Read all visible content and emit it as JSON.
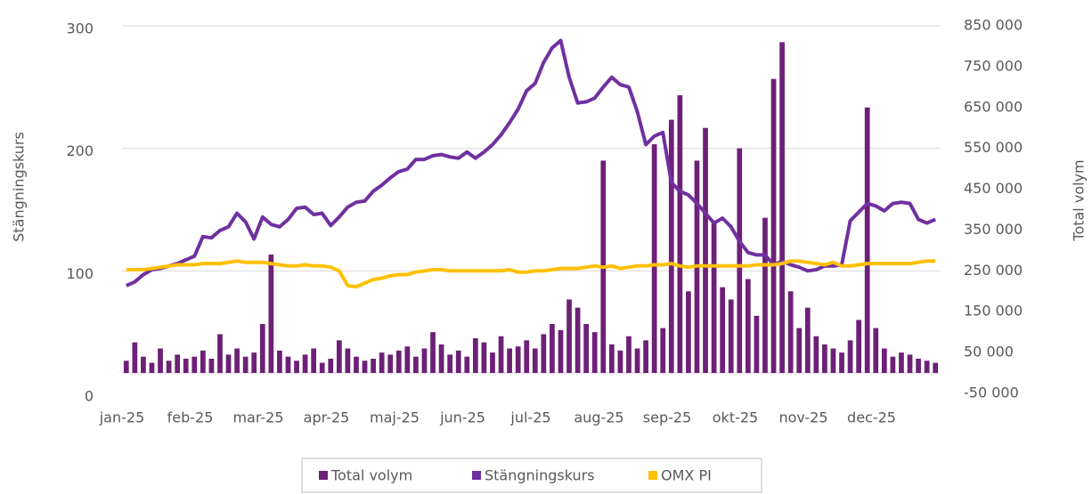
{
  "chart_data": {
    "type": "combo",
    "y_label": "Stängningskurs",
    "y2_label": "Total volym",
    "categories": [
      "jan-25",
      null,
      null,
      null,
      null,
      null,
      null,
      null,
      "feb-25",
      null,
      null,
      null,
      null,
      null,
      null,
      null,
      "mar-25",
      null,
      null,
      null,
      null,
      null,
      null,
      null,
      "apr-25",
      null,
      null,
      null,
      null,
      null,
      null,
      null,
      "maj-25",
      null,
      null,
      null,
      null,
      null,
      null,
      null,
      "jun-25",
      null,
      null,
      null,
      null,
      null,
      null,
      null,
      "jul-25",
      null,
      null,
      null,
      null,
      null,
      null,
      null,
      "aug-25",
      null,
      null,
      null,
      null,
      null,
      null,
      null,
      "sep-25",
      null,
      null,
      null,
      null,
      null,
      null,
      null,
      "okt-25",
      null,
      null,
      null,
      null,
      null,
      null,
      null,
      "nov-25",
      null,
      null,
      null,
      null,
      null,
      null,
      null,
      "dec-25",
      null,
      null,
      null,
      null,
      null,
      null,
      null
    ],
    "series": [
      {
        "name": "Total volym",
        "type": "bar",
        "axis": "y2",
        "color": "#6d2077",
        "values": [
          30000,
          75000,
          40000,
          25000,
          60000,
          30000,
          45000,
          35000,
          40000,
          55000,
          35000,
          95000,
          45000,
          60000,
          40000,
          50000,
          120000,
          290000,
          55000,
          40000,
          30000,
          45000,
          60000,
          25000,
          35000,
          80000,
          60000,
          40000,
          30000,
          35000,
          50000,
          45000,
          55000,
          65000,
          40000,
          60000,
          100000,
          70000,
          45000,
          55000,
          40000,
          85000,
          75000,
          50000,
          90000,
          60000,
          65000,
          80000,
          60000,
          95000,
          120000,
          105000,
          180000,
          160000,
          120000,
          100000,
          520000,
          70000,
          55000,
          90000,
          60000,
          80000,
          560000,
          110000,
          620000,
          680000,
          200000,
          520000,
          600000,
          370000,
          210000,
          180000,
          550000,
          230000,
          140000,
          380000,
          720000,
          810000,
          200000,
          110000,
          160000,
          90000,
          70000,
          60000,
          50000,
          80000,
          130000,
          650000,
          110000,
          60000,
          40000,
          50000,
          45000,
          35000,
          30000,
          25000
        ]
      },
      {
        "name": "Stängningskurs",
        "type": "line",
        "color": "#7030a0",
        "values": [
          88,
          91,
          97,
          101,
          102,
          104,
          106,
          109,
          112,
          128,
          127,
          133,
          136,
          147,
          140,
          126,
          144,
          138,
          136,
          142,
          151,
          152,
          146,
          147,
          137,
          144,
          152,
          156,
          157,
          165,
          170,
          176,
          181,
          183,
          191,
          191,
          194,
          195,
          193,
          192,
          197,
          192,
          197,
          203,
          211,
          221,
          232,
          247,
          253,
          270,
          282,
          288,
          258,
          237,
          238,
          241,
          250,
          258,
          252,
          250,
          230,
          203,
          210,
          213,
          172,
          165,
          162,
          155,
          147,
          139,
          143,
          136,
          124,
          115,
          113,
          113,
          105,
          108,
          105,
          103,
          100,
          101,
          104,
          104,
          105,
          141,
          148,
          155,
          153,
          149,
          155,
          156,
          155,
          142,
          139,
          142
        ]
      },
      {
        "name": "OMX PI",
        "type": "line",
        "color": "#ffc000",
        "values": [
          101,
          101,
          101,
          102,
          103,
          104,
          105,
          105,
          105,
          106,
          106,
          106,
          107,
          108,
          107,
          107,
          107,
          106,
          105,
          104,
          104,
          105,
          104,
          104,
          103,
          100,
          88,
          87,
          90,
          93,
          94,
          96,
          97,
          97,
          99,
          100,
          101,
          101,
          100,
          100,
          100,
          100,
          100,
          100,
          100,
          101,
          99,
          99,
          100,
          100,
          101,
          102,
          102,
          102,
          103,
          104,
          103,
          104,
          102,
          103,
          104,
          104,
          105,
          105,
          106,
          104,
          103,
          104,
          104,
          104,
          104,
          104,
          104,
          104,
          105,
          105,
          105,
          106,
          108,
          108,
          107,
          106,
          105,
          107,
          104,
          104,
          105,
          106,
          106,
          106,
          106,
          106,
          106,
          107,
          108,
          108
        ]
      }
    ],
    "ylim": [
      0,
      300
    ],
    "yticks": [
      0,
      100,
      200,
      300
    ],
    "y2lim": [
      -50000,
      850000
    ],
    "y2ticks": [
      {
        "value": -50000,
        "label": "-50 000"
      },
      {
        "value": 50000,
        "label": "50 000"
      },
      {
        "value": 150000,
        "label": "150 000"
      },
      {
        "value": 250000,
        "label": "250 000"
      },
      {
        "value": 350000,
        "label": "350 000"
      },
      {
        "value": 450000,
        "label": "450 000"
      },
      {
        "value": 550000,
        "label": "550 000"
      },
      {
        "value": 650000,
        "label": "650 000"
      },
      {
        "value": 750000,
        "label": "750 000"
      },
      {
        "value": 850000,
        "label": "850 000"
      }
    ],
    "grid": true,
    "legend": "bottom"
  }
}
